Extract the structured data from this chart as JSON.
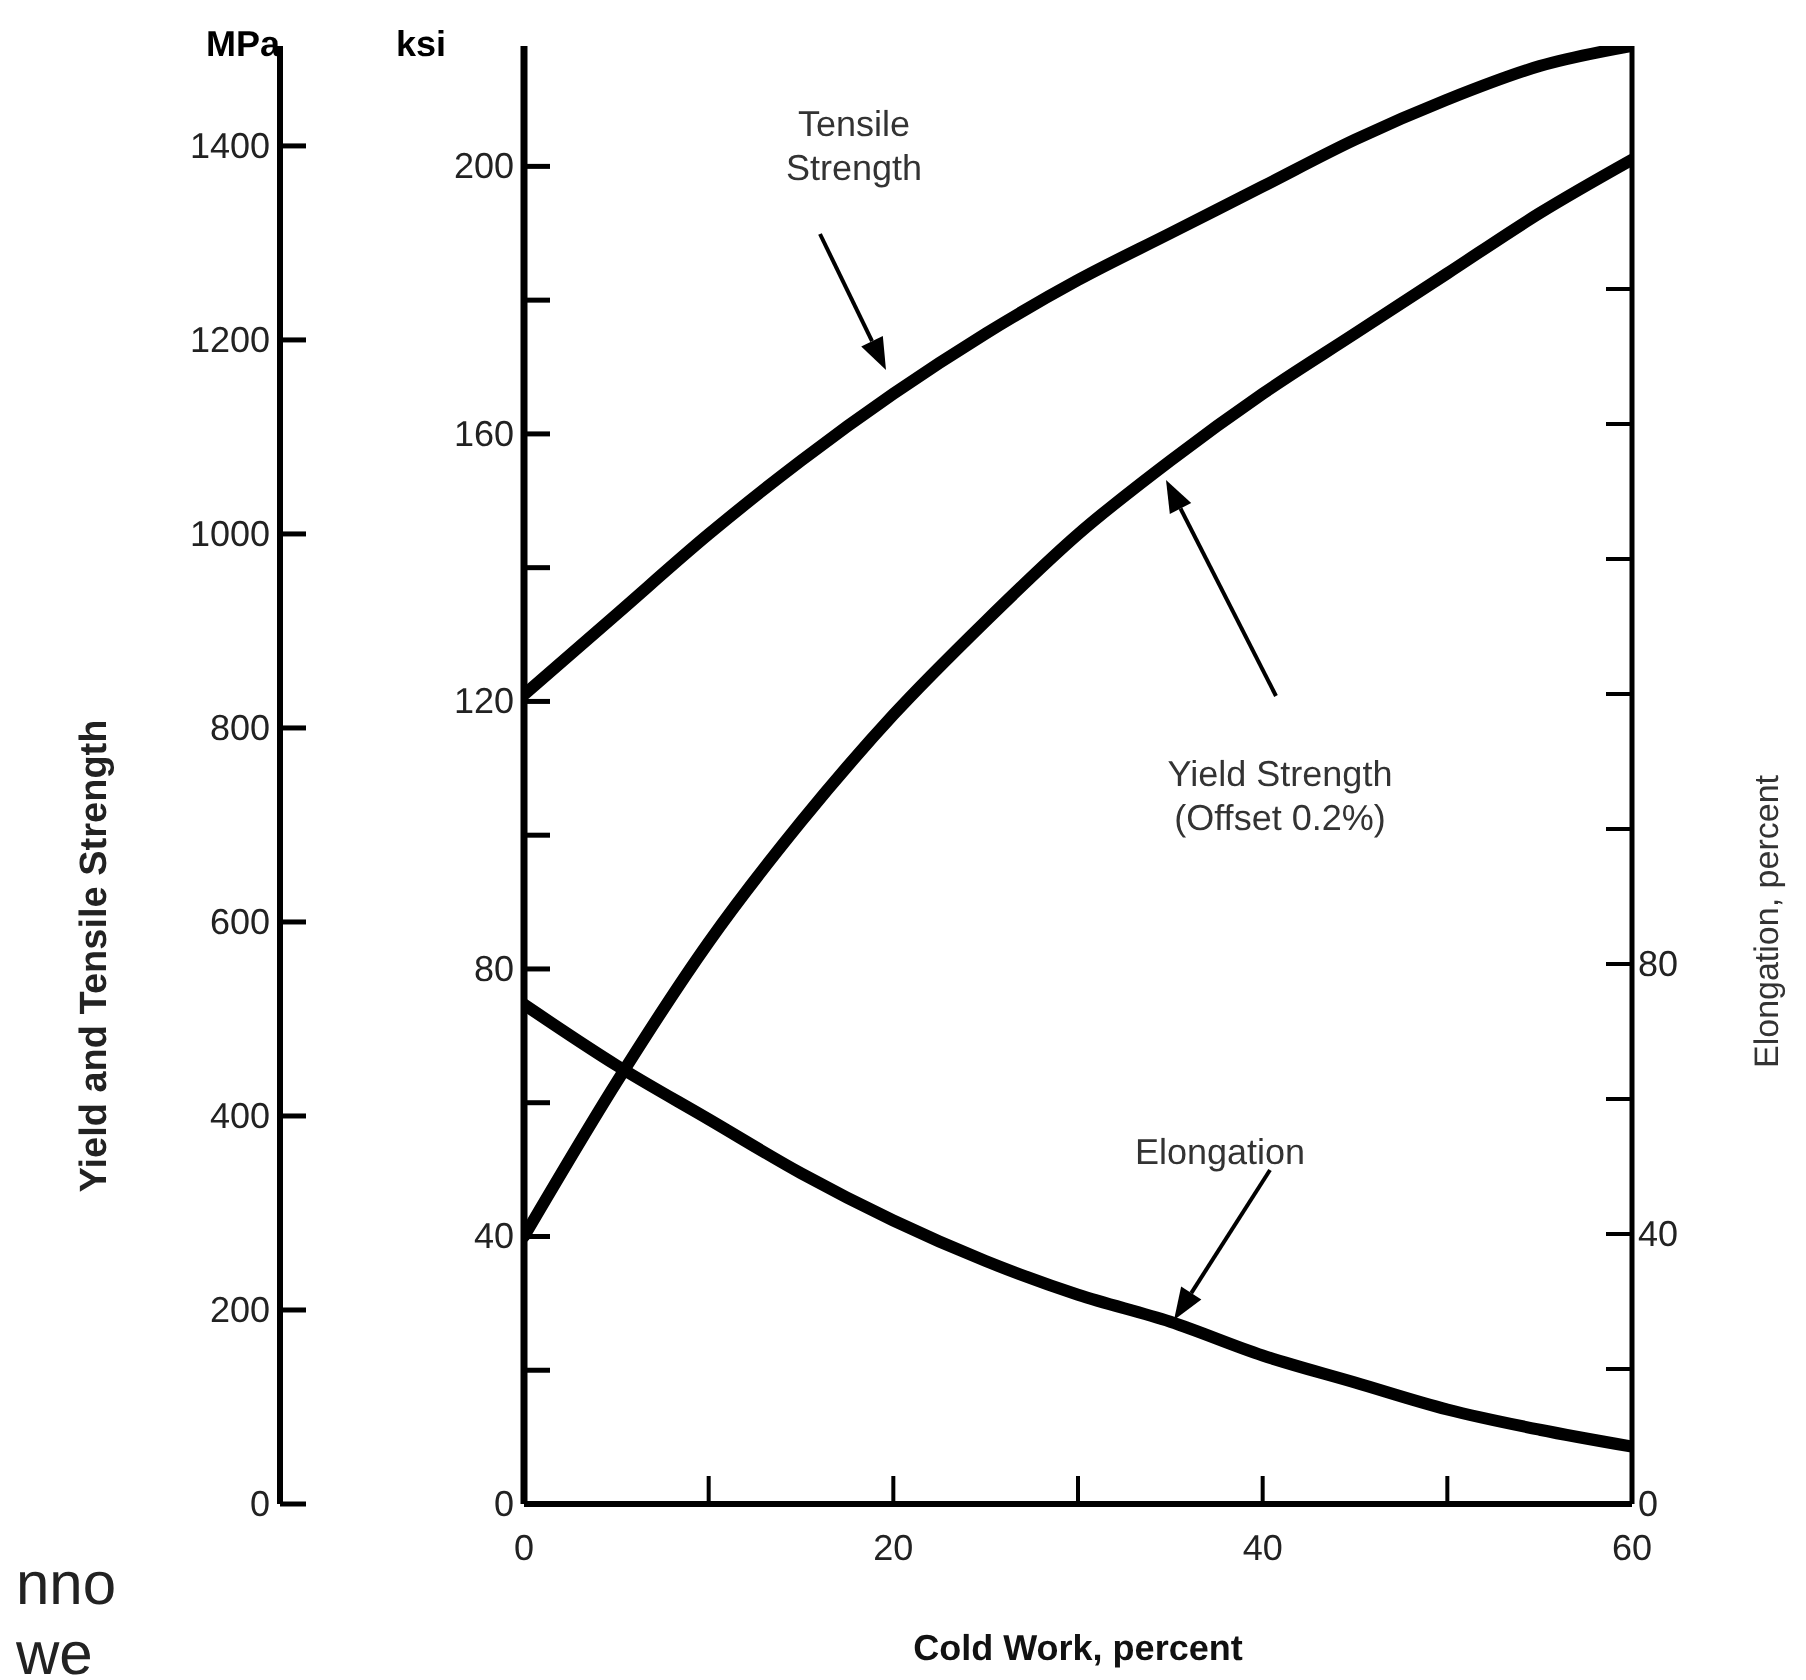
{
  "chart_data": {
    "type": "line",
    "xlabel": "Cold Work, percent",
    "ylabel": "ksi",
    "y3label": "MPa",
    "y2label": "Elongation, percent",
    "x": [
      0,
      5,
      10,
      15,
      20,
      25,
      30,
      35,
      40,
      45,
      50,
      55,
      60
    ],
    "xlim": [
      0,
      60
    ],
    "xticks": [
      0,
      {
        "value": 10,
        "label": null
      },
      20,
      {
        "value": 30,
        "label": null
      },
      40,
      {
        "value": 50,
        "label": null
      },
      60
    ],
    "ylim": [
      0,
      218
    ],
    "yticks": [
      0,
      {
        "value": 20,
        "label": null
      },
      40,
      {
        "value": 60,
        "label": null
      },
      80,
      {
        "value": 100,
        "label": null
      },
      120,
      {
        "value": 140,
        "label": null
      },
      160,
      {
        "value": 180,
        "label": null
      },
      200
    ],
    "y3lim": [
      0,
      1503
    ],
    "y3ticks": [
      0,
      200,
      400,
      600,
      800,
      1000,
      1200,
      1400
    ],
    "y2lim": [
      0,
      216
    ],
    "y2ticks": [
      0,
      {
        "value": 20,
        "label": null
      },
      40,
      {
        "value": 60,
        "label": null
      },
      80,
      {
        "value": 100,
        "label": null
      },
      {
        "value": 120,
        "label": null
      },
      {
        "value": 140,
        "label": null
      },
      {
        "value": 160,
        "label": null
      },
      {
        "value": 180,
        "label": null
      }
    ],
    "series": [
      {
        "color": "#000000",
        "values": [
          121,
          133,
          145,
          156,
          166,
          175,
          183,
          190,
          197,
          204,
          210,
          215,
          218
        ]
      },
      {
        "color": "#000000",
        "values": [
          40,
          63,
          84,
          102,
          118,
          132,
          145,
          156,
          166,
          175,
          184,
          193,
          201
        ]
      },
      {
        "color": "#000000",
        "axis": "y2",
        "values": [
          74,
          65,
          57,
          49,
          42,
          36,
          31,
          27,
          22,
          18,
          14,
          11,
          8.5
        ]
      }
    ],
    "marker": "none",
    "line_style": "solid",
    "annotations": [
      "Tensile\nStrength",
      "Yield Strength\n(Offset 0.2%)",
      "Elongation",
      "Yield and Tensile Strength",
      "nno",
      "we"
    ]
  }
}
